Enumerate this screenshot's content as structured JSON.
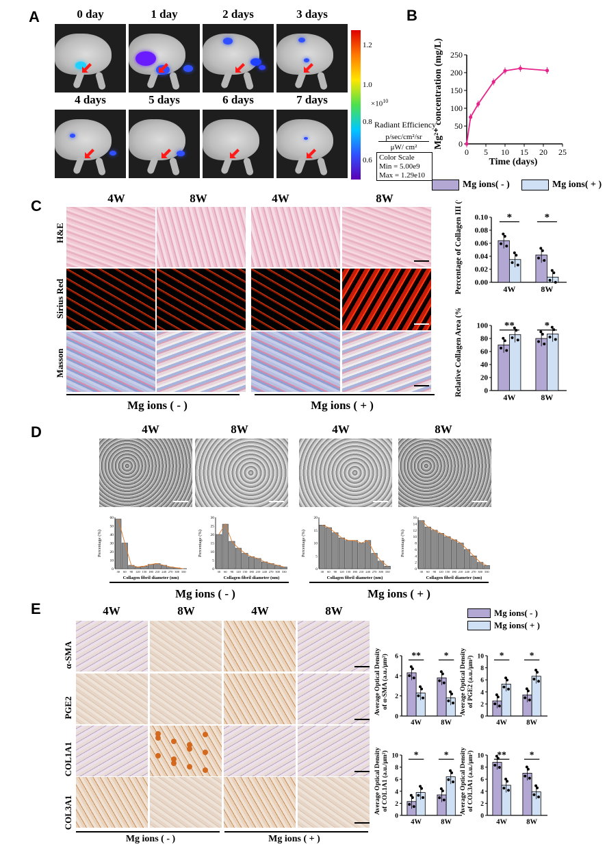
{
  "panels": {
    "A": "A",
    "B": "B",
    "C": "C",
    "D": "D",
    "E": "E"
  },
  "panelA": {
    "days": [
      "0 day",
      "1 day",
      "2 days",
      "3 days",
      "4 days",
      "5 days",
      "6 days",
      "7 days"
    ],
    "colorbar": {
      "ticks": [
        "1.2",
        "1.0",
        "0.8",
        "0.6"
      ],
      "exponent": "×10",
      "exponent_power": "10",
      "title": "Radiant Efficiency",
      "unit_top": "p/sec/cm²/sr",
      "unit_bottom": "μW/ cm²",
      "scale_title": "Color Scale",
      "scale_min": "Min = 5.00e9",
      "scale_max": "Max = 1.29e10"
    }
  },
  "panelB": {
    "chart_data": {
      "type": "line",
      "x": [
        0,
        1,
        3,
        7,
        10,
        14,
        21
      ],
      "y": [
        0,
        75,
        112,
        174,
        205,
        212,
        206
      ],
      "xlabel": "Time (days)",
      "ylabel": "Mg²⁺ concentration (mg/L)",
      "xlim": [
        0,
        25
      ],
      "ylim": [
        0,
        250
      ],
      "xticks": [
        "0",
        "5",
        "10",
        "15",
        "20",
        "25"
      ],
      "yticks": [
        "0",
        "50",
        "100",
        "150",
        "200",
        "250"
      ],
      "color": "#e6238a"
    }
  },
  "legend": {
    "minus": "Mg ions( - )",
    "plus": "Mg ions( + )",
    "minus_color": "#b3a8d4",
    "plus_color": "#cfe0f5"
  },
  "panelC": {
    "col_headers": [
      "4W",
      "8W",
      "4W",
      "8W"
    ],
    "rows": [
      "H&E",
      "Sirius Red",
      "Masson"
    ],
    "group_minus": "Mg ions ( - )",
    "group_plus": "Mg ions ( + )",
    "charts": [
      {
        "type": "bar",
        "ylabel": "Percentage of Collagen III (%)",
        "categories": [
          "4W",
          "8W"
        ],
        "yticks": [
          "0.00",
          "0.02",
          "0.04",
          "0.06",
          "0.08",
          "0.10"
        ],
        "ylim": [
          0,
          0.1
        ],
        "series": [
          {
            "values": [
              0.064,
              0.042
            ]
          },
          {
            "values": [
              0.035,
              0.008
            ]
          }
        ],
        "significance": [
          "*",
          "*"
        ]
      },
      {
        "type": "bar",
        "ylabel": "Relative Collagen Area (%)",
        "categories": [
          "4W",
          "8W"
        ],
        "yticks": [
          "0",
          "20",
          "40",
          "60",
          "80",
          "100"
        ],
        "ylim": [
          0,
          100
        ],
        "series": [
          {
            "values": [
              70,
              80
            ]
          },
          {
            "values": [
              86,
              87
            ]
          }
        ],
        "significance": [
          "**",
          "*"
        ]
      }
    ]
  },
  "panelD": {
    "col_headers": [
      "4W",
      "8W",
      "4W",
      "8W"
    ],
    "group_minus": "Mg ions ( - )",
    "group_plus": "Mg ions ( + )",
    "hist_ylabel": "Percentage (%)",
    "hist_xlabel": "Collagen fibril diameter (nm)",
    "hist_xticks": [
      "30",
      "60",
      "90",
      "120",
      "150",
      "180",
      "210",
      "240",
      "270",
      "300",
      "330"
    ],
    "histograms": [
      {
        "yticks": [
          "0",
          "10",
          "20",
          "30",
          "40",
          "50",
          "60"
        ],
        "ymax": 60,
        "values": [
          58,
          30,
          4,
          2,
          3,
          5,
          6,
          4,
          2,
          1,
          0
        ]
      },
      {
        "yticks": [
          "0",
          "5",
          "10",
          "15",
          "20",
          "25",
          "30"
        ],
        "ymax": 30,
        "values": [
          20,
          26,
          16,
          12,
          9,
          7,
          6,
          4,
          3,
          2,
          1
        ]
      },
      {
        "yticks": [
          "0",
          "5",
          "10",
          "15",
          "20"
        ],
        "ymax": 20,
        "values": [
          17,
          16,
          14,
          12,
          11,
          11,
          10,
          11,
          6,
          3,
          1
        ]
      },
      {
        "yticks": [
          "0",
          "2",
          "4",
          "6",
          "8",
          "10",
          "12",
          "14",
          "16"
        ],
        "ymax": 16,
        "values": [
          15,
          13,
          12,
          11,
          10,
          9,
          8,
          6,
          4,
          2,
          1
        ]
      }
    ]
  },
  "panelE": {
    "col_headers": [
      "4W",
      "8W",
      "4W",
      "8W"
    ],
    "rows": [
      "α-SMA",
      "PGE2",
      "COL1A1",
      "COL3A1"
    ],
    "group_minus": "Mg ions ( - )",
    "group_plus": "Mg ions ( + )",
    "legend_minus": "Mg ions( - )",
    "legend_plus": "Mg ions( + )",
    "charts": [
      {
        "ylabel_1": "Average Optical Density",
        "ylabel_2": "of α-SMA (a.u./μm²)",
        "yticks": [
          "0",
          "2",
          "4",
          "6"
        ],
        "ylim": [
          0,
          6
        ],
        "categories": [
          "4W",
          "8W"
        ],
        "series": [
          {
            "values": [
              4.3,
              3.8
            ]
          },
          {
            "values": [
              2.3,
              1.8
            ]
          }
        ],
        "significance": [
          "**",
          "*"
        ]
      },
      {
        "ylabel_1": "Average Optical Density",
        "ylabel_2": "of PGE2 (a.u./μm²)",
        "yticks": [
          "0",
          "2",
          "4",
          "6",
          "8",
          "10"
        ],
        "ylim": [
          0,
          10
        ],
        "categories": [
          "4W",
          "8W"
        ],
        "series": [
          {
            "values": [
              2.5,
              3.5
            ]
          },
          {
            "values": [
              5.3,
              6.6
            ]
          }
        ],
        "significance": [
          "*",
          "*"
        ]
      },
      {
        "ylabel_1": "Average Optical Density",
        "ylabel_2": "of COL1A1 (a.u./μm²)",
        "yticks": [
          "0",
          "2",
          "4",
          "6",
          "8",
          "10"
        ],
        "ylim": [
          0,
          10
        ],
        "categories": [
          "4W",
          "8W"
        ],
        "series": [
          {
            "values": [
              2.3,
              3.4
            ]
          },
          {
            "values": [
              3.8,
              6.4
            ]
          }
        ],
        "significance": [
          "*",
          "*"
        ]
      },
      {
        "ylabel_1": "Average Optical Density",
        "ylabel_2": "of COL3A1 (a.u./μm²)",
        "yticks": [
          "0",
          "2",
          "4",
          "6",
          "8",
          "10"
        ],
        "ylim": [
          0,
          10
        ],
        "categories": [
          "4W",
          "8W"
        ],
        "series": [
          {
            "values": [
              8.8,
              7.0
            ]
          },
          {
            "values": [
              5.0,
              3.9
            ]
          }
        ],
        "significance": [
          "**",
          "*"
        ]
      }
    ]
  }
}
